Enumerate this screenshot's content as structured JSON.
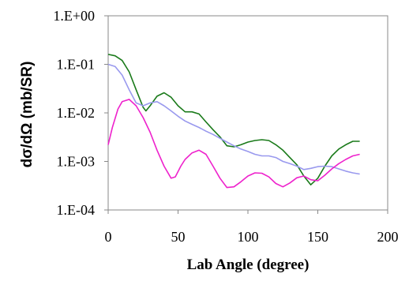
{
  "chart_data": {
    "type": "line",
    "title": "",
    "xlabel": "Lab Angle (degree)",
    "ylabel": "dσ/dΩ (mb/SR)",
    "xlim": [
      0,
      200
    ],
    "ylim": [
      0.0001,
      1
    ],
    "yscale": "log",
    "grid": false,
    "legend": "none",
    "xticks": [
      0,
      50,
      100,
      150,
      200
    ],
    "xtick_labels": [
      "0",
      "50",
      "100",
      "150",
      "200"
    ],
    "yticks": [
      0.0001,
      0.001,
      0.01,
      0.1,
      1
    ],
    "ytick_labels": [
      "1.E-04",
      "1.E-03",
      "1.E-02",
      "1.E-01",
      "1.E+00"
    ],
    "series": [
      {
        "color": "#1a7a1a",
        "x": [
          0,
          5,
          10,
          15,
          20,
          25,
          27,
          30,
          35,
          40,
          45,
          50,
          55,
          60,
          65,
          70,
          75,
          80,
          85,
          90,
          95,
          100,
          105,
          110,
          115,
          120,
          125,
          130,
          135,
          140,
          145,
          150,
          155,
          160,
          165,
          170,
          175,
          180
        ],
        "y": [
          0.16,
          0.15,
          0.12,
          0.07,
          0.03,
          0.013,
          0.011,
          0.014,
          0.022,
          0.026,
          0.021,
          0.014,
          0.0105,
          0.0105,
          0.0095,
          0.0065,
          0.0045,
          0.0032,
          0.0021,
          0.002,
          0.0022,
          0.0025,
          0.0027,
          0.0028,
          0.0027,
          0.0022,
          0.0017,
          0.0012,
          0.00085,
          0.0005,
          0.00033,
          0.00045,
          0.0008,
          0.0013,
          0.0018,
          0.0022,
          0.0026,
          0.0026
        ]
      },
      {
        "color": "#9999ee",
        "x": [
          0,
          5,
          10,
          15,
          20,
          25,
          30,
          35,
          40,
          45,
          50,
          55,
          60,
          65,
          70,
          75,
          80,
          85,
          90,
          95,
          100,
          105,
          110,
          115,
          120,
          125,
          130,
          135,
          140,
          145,
          150,
          155,
          160,
          165,
          170,
          175,
          180
        ],
        "y": [
          0.1,
          0.09,
          0.06,
          0.03,
          0.016,
          0.014,
          0.016,
          0.017,
          0.014,
          0.011,
          0.0085,
          0.0068,
          0.0058,
          0.005,
          0.0042,
          0.0036,
          0.003,
          0.0025,
          0.0021,
          0.0018,
          0.0016,
          0.0014,
          0.0013,
          0.0013,
          0.0012,
          0.001,
          0.0009,
          0.0008,
          0.00068,
          0.00072,
          0.00078,
          0.0008,
          0.00078,
          0.0007,
          0.00063,
          0.00058,
          0.00055
        ]
      },
      {
        "color": "#ee22cc",
        "x": [
          0,
          3,
          7,
          10,
          15,
          20,
          25,
          30,
          35,
          40,
          45,
          48,
          52,
          55,
          60,
          65,
          70,
          75,
          80,
          85,
          90,
          95,
          100,
          105,
          110,
          115,
          120,
          125,
          130,
          135,
          140,
          145,
          150,
          155,
          160,
          165,
          170,
          175,
          180
        ],
        "y": [
          0.0022,
          0.005,
          0.012,
          0.017,
          0.019,
          0.014,
          0.008,
          0.004,
          0.0017,
          0.0008,
          0.00045,
          0.00048,
          0.0008,
          0.0011,
          0.0015,
          0.0017,
          0.0014,
          0.0008,
          0.00045,
          0.00029,
          0.0003,
          0.00038,
          0.0005,
          0.00058,
          0.00057,
          0.00048,
          0.00035,
          0.0003,
          0.00036,
          0.00046,
          0.0005,
          0.00042,
          0.0004,
          0.00052,
          0.0007,
          0.0009,
          0.0011,
          0.0013,
          0.0014
        ]
      }
    ]
  }
}
